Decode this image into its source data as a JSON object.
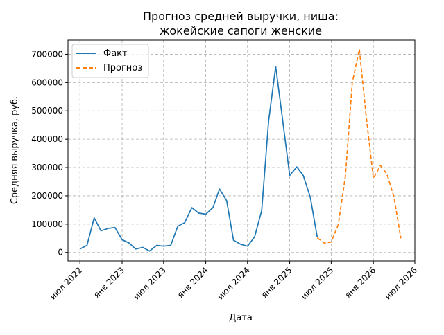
{
  "chart_data": {
    "type": "line",
    "title_line1": "Прогноз средней выручки, ниша:",
    "title_line2": "жокейские сапоги женские",
    "xlabel": "Дата",
    "ylabel": "Средняя выручка, руб.",
    "grid": true,
    "legend_position": "top-left",
    "x_ticks": [
      {
        "date": "2022-07",
        "label": "июл 2022"
      },
      {
        "date": "2023-01",
        "label": "янв 2023"
      },
      {
        "date": "2023-07",
        "label": "июл 2023"
      },
      {
        "date": "2024-01",
        "label": "янв 2024"
      },
      {
        "date": "2024-07",
        "label": "июл 2024"
      },
      {
        "date": "2025-01",
        "label": "янв 2025"
      },
      {
        "date": "2025-07",
        "label": "июл 2025"
      },
      {
        "date": "2026-01",
        "label": "янв 2026"
      },
      {
        "date": "2026-07",
        "label": "июл 2026"
      }
    ],
    "y_ticks": [
      {
        "value": 0,
        "label": "0"
      },
      {
        "value": 100000,
        "label": "100000"
      },
      {
        "value": 200000,
        "label": "200000"
      },
      {
        "value": 300000,
        "label": "300000"
      },
      {
        "value": 400000,
        "label": "400000"
      },
      {
        "value": 500000,
        "label": "500000"
      },
      {
        "value": 600000,
        "label": "600000"
      },
      {
        "value": 700000,
        "label": "700000"
      }
    ],
    "xlim": [
      "2022-05-10",
      "2026-07-01"
    ],
    "ylim": [
      -30000,
      750000
    ],
    "series": [
      {
        "name": "Факт",
        "color": "#1f77b4",
        "dashed": false,
        "points": [
          [
            "2022-07-01",
            12000
          ],
          [
            "2022-08-01",
            25000
          ],
          [
            "2022-09-01",
            122000
          ],
          [
            "2022-10-01",
            76000
          ],
          [
            "2022-11-01",
            85000
          ],
          [
            "2022-12-01",
            88000
          ],
          [
            "2023-01-01",
            45000
          ],
          [
            "2023-02-01",
            33000
          ],
          [
            "2023-03-01",
            12000
          ],
          [
            "2023-04-01",
            18000
          ],
          [
            "2023-05-01",
            5000
          ],
          [
            "2023-06-01",
            25000
          ],
          [
            "2023-07-01",
            22000
          ],
          [
            "2023-08-01",
            25000
          ],
          [
            "2023-09-01",
            93000
          ],
          [
            "2023-10-01",
            105000
          ],
          [
            "2023-11-01",
            158000
          ],
          [
            "2023-12-01",
            139000
          ],
          [
            "2024-01-01",
            135000
          ],
          [
            "2024-02-01",
            158000
          ],
          [
            "2024-03-01",
            224000
          ],
          [
            "2024-04-01",
            183000
          ],
          [
            "2024-05-01",
            43000
          ],
          [
            "2024-06-01",
            29000
          ],
          [
            "2024-07-01",
            22000
          ],
          [
            "2024-08-01",
            55000
          ],
          [
            "2024-09-01",
            148000
          ],
          [
            "2024-10-01",
            465000
          ],
          [
            "2024-11-01",
            657000
          ],
          [
            "2024-12-01",
            470000
          ],
          [
            "2025-01-01",
            272000
          ],
          [
            "2025-02-01",
            302000
          ],
          [
            "2025-03-01",
            272000
          ],
          [
            "2025-04-01",
            195000
          ],
          [
            "2025-05-01",
            55000
          ]
        ]
      },
      {
        "name": "Прогноз",
        "color": "#ff7f0e",
        "dashed": true,
        "points": [
          [
            "2025-05-01",
            52000
          ],
          [
            "2025-06-01",
            33000
          ],
          [
            "2025-07-01",
            37000
          ],
          [
            "2025-08-01",
            98000
          ],
          [
            "2025-09-01",
            270000
          ],
          [
            "2025-10-01",
            600000
          ],
          [
            "2025-11-01",
            718000
          ],
          [
            "2025-12-01",
            480000
          ],
          [
            "2026-01-01",
            262000
          ],
          [
            "2026-02-01",
            307000
          ],
          [
            "2026-03-01",
            277000
          ],
          [
            "2026-04-01",
            196000
          ],
          [
            "2026-05-01",
            50000
          ]
        ]
      }
    ]
  }
}
